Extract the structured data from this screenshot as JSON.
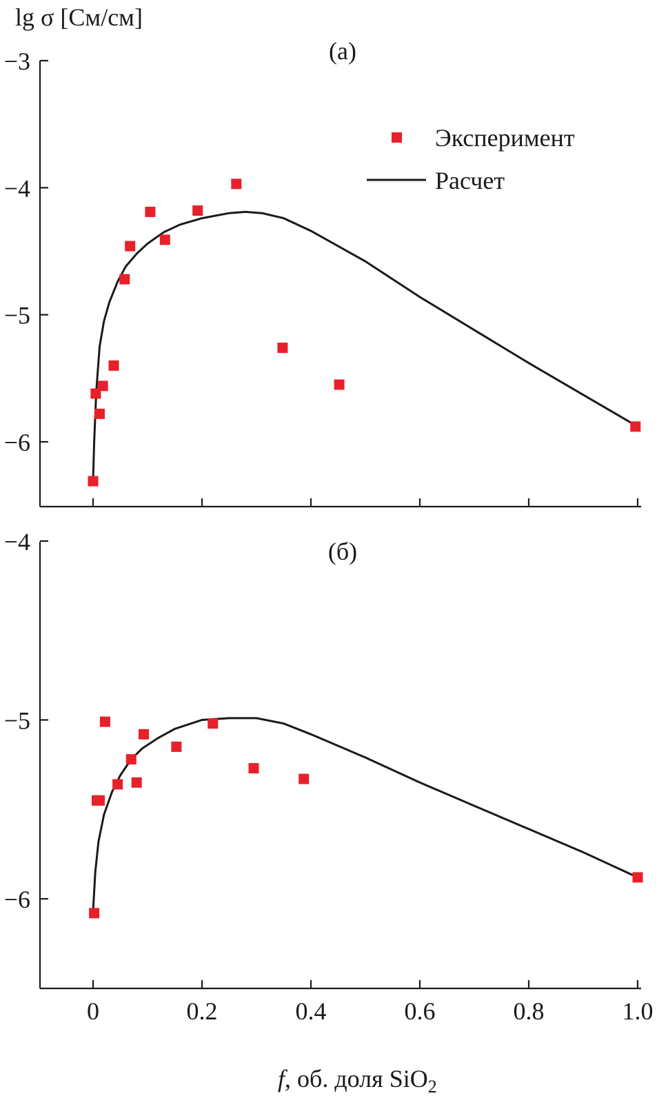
{
  "figure": {
    "ylabel": "lg σ [См/см]",
    "xlabel_italic": "f",
    "xlabel_rest": ", об. доля SiO",
    "xlabel_sub": "2",
    "legend": {
      "experiment": "Эксперимент",
      "calculation": "Расчет"
    },
    "colors": {
      "points": "#e8202a",
      "curve": "#1a1a1a"
    }
  },
  "chart_data": [
    {
      "type": "scatter",
      "panel_label": "(а)",
      "xlim": [
        -0.1,
        1.0
      ],
      "ylim": [
        -6.5,
        -3.0
      ],
      "yticks": [
        -3,
        -4,
        -5,
        -6
      ],
      "ytick_labels": [
        "−3",
        "−4",
        "−5",
        "−6"
      ],
      "xticks": [
        0,
        0.2,
        0.4,
        0.6,
        0.8,
        1.0
      ],
      "legend_position": "top-right",
      "series": [
        {
          "name": "Эксперимент",
          "kind": "points",
          "points": [
            [
              0.0,
              -6.31
            ],
            [
              0.005,
              -5.62
            ],
            [
              0.012,
              -5.78
            ],
            [
              0.018,
              -5.56
            ],
            [
              0.038,
              -5.4
            ],
            [
              0.058,
              -4.72
            ],
            [
              0.068,
              -4.46
            ],
            [
              0.105,
              -4.19
            ],
            [
              0.132,
              -4.41
            ],
            [
              0.192,
              -4.18
            ],
            [
              0.263,
              -3.97
            ],
            [
              0.348,
              -5.26
            ],
            [
              0.452,
              -5.55
            ],
            [
              0.996,
              -5.88
            ]
          ]
        },
        {
          "name": "Расчет",
          "kind": "line",
          "points": [
            [
              0.0,
              -6.3
            ],
            [
              0.002,
              -6.0
            ],
            [
              0.006,
              -5.6
            ],
            [
              0.012,
              -5.25
            ],
            [
              0.02,
              -5.05
            ],
            [
              0.03,
              -4.9
            ],
            [
              0.045,
              -4.74
            ],
            [
              0.06,
              -4.62
            ],
            [
              0.08,
              -4.52
            ],
            [
              0.1,
              -4.44
            ],
            [
              0.13,
              -4.35
            ],
            [
              0.16,
              -4.29
            ],
            [
              0.2,
              -4.24
            ],
            [
              0.25,
              -4.2
            ],
            [
              0.28,
              -4.19
            ],
            [
              0.31,
              -4.2
            ],
            [
              0.35,
              -4.24
            ],
            [
              0.4,
              -4.34
            ],
            [
              0.5,
              -4.58
            ],
            [
              0.6,
              -4.86
            ],
            [
              0.7,
              -5.12
            ],
            [
              0.8,
              -5.38
            ],
            [
              0.9,
              -5.63
            ],
            [
              1.0,
              -5.88
            ]
          ]
        }
      ]
    },
    {
      "type": "scatter",
      "panel_label": "(б)",
      "xlim": [
        -0.1,
        1.0
      ],
      "ylim": [
        -6.5,
        -4.0
      ],
      "yticks": [
        -4,
        -5,
        -6
      ],
      "ytick_labels": [
        "−4",
        "−5",
        "−6"
      ],
      "xticks": [
        0,
        0.2,
        0.4,
        0.6,
        0.8,
        1.0
      ],
      "xtick_labels": [
        "0",
        "0.2",
        "0.4",
        "0.6",
        "0.8",
        "1.0"
      ],
      "series": [
        {
          "name": "Эксперимент",
          "kind": "points",
          "points": [
            [
              0.002,
              -6.08
            ],
            [
              0.007,
              -5.45
            ],
            [
              0.012,
              -5.45
            ],
            [
              0.022,
              -5.01
            ],
            [
              0.045,
              -5.36
            ],
            [
              0.07,
              -5.22
            ],
            [
              0.08,
              -5.35
            ],
            [
              0.093,
              -5.08
            ],
            [
              0.153,
              -5.15
            ],
            [
              0.22,
              -5.02
            ],
            [
              0.295,
              -5.27
            ],
            [
              0.387,
              -5.33
            ],
            [
              1.0,
              -5.88
            ]
          ]
        },
        {
          "name": "Расчет",
          "kind": "line",
          "points": [
            [
              0.0,
              -6.07
            ],
            [
              0.004,
              -5.85
            ],
            [
              0.01,
              -5.68
            ],
            [
              0.02,
              -5.53
            ],
            [
              0.035,
              -5.4
            ],
            [
              0.05,
              -5.31
            ],
            [
              0.07,
              -5.22
            ],
            [
              0.09,
              -5.16
            ],
            [
              0.12,
              -5.1
            ],
            [
              0.15,
              -5.05
            ],
            [
              0.2,
              -5.0
            ],
            [
              0.25,
              -4.99
            ],
            [
              0.3,
              -4.99
            ],
            [
              0.35,
              -5.02
            ],
            [
              0.4,
              -5.08
            ],
            [
              0.5,
              -5.21
            ],
            [
              0.6,
              -5.35
            ],
            [
              0.7,
              -5.48
            ],
            [
              0.8,
              -5.61
            ],
            [
              0.9,
              -5.74
            ],
            [
              1.0,
              -5.88
            ]
          ]
        }
      ]
    }
  ]
}
